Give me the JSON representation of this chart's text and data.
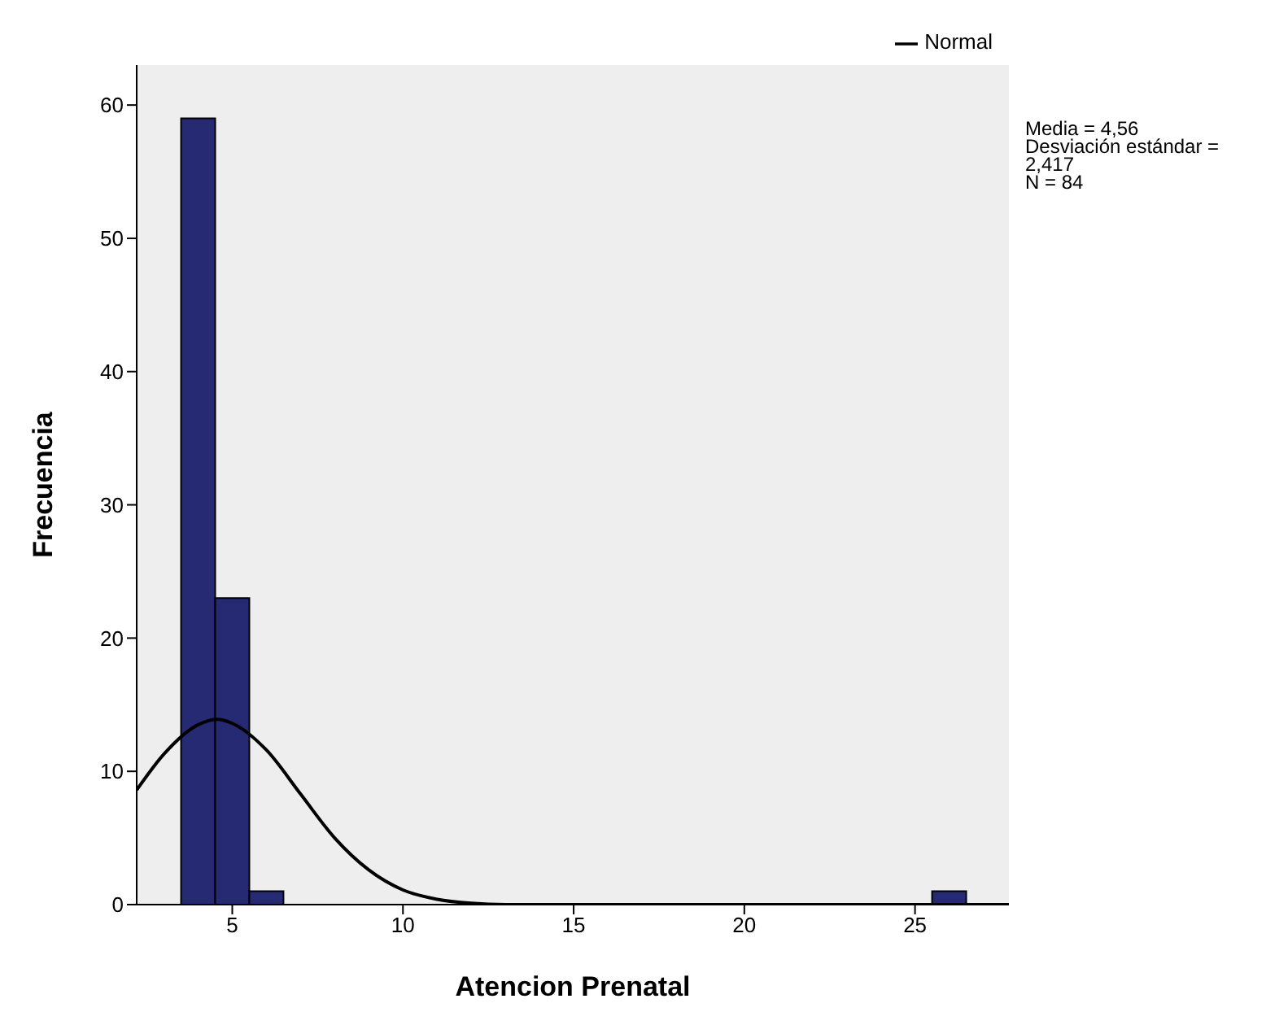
{
  "chart_data": {
    "type": "histogram",
    "xlabel": "Atencion Prenatal",
    "ylabel": "Frecuencia",
    "bins": [
      3.5,
      4.5,
      5.5,
      6.5,
      7.5,
      8.5,
      9.5,
      10.5,
      11.5,
      12.5,
      13.5,
      14.5,
      15.5,
      16.5,
      17.5,
      18.5,
      19.5,
      20.5,
      21.5,
      22.5,
      23.5,
      24.5,
      25.5,
      26.5
    ],
    "values": [
      59,
      23,
      1,
      0,
      0,
      0,
      0,
      0,
      0,
      0,
      0,
      0,
      0,
      0,
      0,
      0,
      0,
      0,
      0,
      0,
      0,
      0,
      1
    ],
    "color": "#262a72",
    "series": [
      {
        "name": "Normal",
        "type": "line",
        "color": "#000000",
        "x": [
          2.2,
          3,
          4,
          4.56,
          5,
          6,
          7,
          8,
          9,
          10,
          11,
          12,
          13,
          15,
          20,
          27.75
        ],
        "values": [
          8.6,
          11.3,
          13.5,
          13.9,
          13.6,
          11.6,
          8.3,
          5.0,
          2.6,
          1.1,
          0.4,
          0.1,
          0,
          0,
          0,
          0
        ]
      }
    ],
    "xlim": [
      2.2,
      27.75
    ],
    "xticks": [
      5,
      10,
      15,
      20,
      25
    ],
    "ylim": [
      0,
      63
    ],
    "yticks": [
      0,
      10,
      20,
      30,
      40,
      50,
      60
    ],
    "legend": "top right",
    "marker": "none",
    "annotations": [
      "Media = 4,56",
      "Desviación estándar = 2,417",
      "N = 84"
    ]
  }
}
